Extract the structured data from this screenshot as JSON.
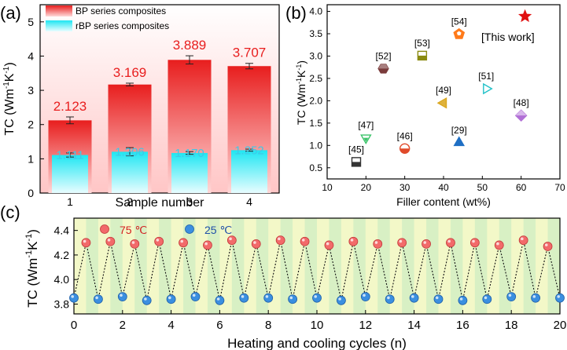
{
  "chart_data": [
    {
      "type": "bar",
      "panel_label": "(a)",
      "xlabel": "Sample number",
      "ylabel": "TC (Wm⁻¹K⁻¹)",
      "ylabel_parts": {
        "main": "TC (Wm",
        "sup1": "-1",
        "mid": "K",
        "sup2": "-1",
        "end": ")"
      },
      "categories": [
        "1",
        "2",
        "3",
        "4"
      ],
      "ylim": [
        0,
        5.5
      ],
      "yticks": [
        0,
        1,
        2,
        3,
        4,
        5
      ],
      "legend_position": "top-left",
      "series": [
        {
          "name": "BP series composites",
          "values": [
            2.123,
            3.169,
            3.889,
            3.707
          ],
          "errors": [
            0.1,
            0.04,
            0.12,
            0.08
          ],
          "labels": [
            "2.123",
            "3.169",
            "3.889",
            "3.707"
          ],
          "color": "#e81e1e",
          "label_color": "#e81e1e"
        },
        {
          "name": "rBP series composites",
          "values": [
            1.111,
            1.206,
            1.17,
            1.252
          ],
          "errors": [
            0.06,
            0.12,
            0.04,
            0.03
          ],
          "labels": [
            "1.111",
            "1.206",
            "1.170",
            "1.252"
          ],
          "color": "#1fe6f2",
          "label_color": "#40c8e6"
        }
      ]
    },
    {
      "type": "scatter",
      "panel_label": "(b)",
      "xlabel": "Filler content (wt%)",
      "ylabel": "TC (Wm⁻¹K⁻¹)",
      "ylabel_parts": {
        "main": "TC (Wm",
        "sup1": "-1",
        "mid": "K",
        "sup2": "-1",
        "end": ")"
      },
      "xlim": [
        10,
        70
      ],
      "ylim": [
        0.25,
        4.15
      ],
      "xticks": [
        10,
        20,
        30,
        40,
        50,
        60,
        70
      ],
      "yticks": [
        0.5,
        1.0,
        1.5,
        2.0,
        2.5,
        3.0,
        3.5,
        4.0
      ],
      "ytick_labels": [
        "0.5",
        "1.0",
        "1.5",
        "2.0",
        "2.5",
        "3.0",
        "3.5",
        "4.0"
      ],
      "points": [
        {
          "label": "[45]",
          "x": 17.5,
          "y": 0.63,
          "shape": "square-half",
          "color": "#333333"
        },
        {
          "label": "[47]",
          "x": 20,
          "y": 1.17,
          "shape": "triangle-down",
          "color": "#3cc46a"
        },
        {
          "label": "[46]",
          "x": 30,
          "y": 0.93,
          "shape": "circle-half",
          "color": "#e04a2a"
        },
        {
          "label": "[52]",
          "x": 24.5,
          "y": 2.72,
          "shape": "hexagon",
          "color": "#7a3b3b"
        },
        {
          "label": "[53]",
          "x": 34.5,
          "y": 3.01,
          "shape": "square-half",
          "color": "#8a8a10"
        },
        {
          "label": "[49]",
          "x": 40,
          "y": 1.95,
          "shape": "triangle-left",
          "color": "#d9a51a"
        },
        {
          "label": "[29]",
          "x": 44,
          "y": 1.06,
          "shape": "triangle-up",
          "color": "#1f6fc4"
        },
        {
          "label": "[54]",
          "x": 44,
          "y": 3.49,
          "shape": "pentagon",
          "color": "#ff7a1a"
        },
        {
          "label": "[51]",
          "x": 51,
          "y": 2.27,
          "shape": "triangle-right",
          "color": "#22c1c8"
        },
        {
          "label": "[48]",
          "x": 60,
          "y": 1.67,
          "shape": "diamond",
          "color": "#b16fd6"
        },
        {
          "label": "[This work]",
          "x": 61,
          "y": 3.89,
          "shape": "star",
          "color": "#e01010"
        }
      ]
    },
    {
      "type": "line",
      "panel_label": "(c)",
      "xlabel": "Heating and cooling cycles (n)",
      "ylabel": "TC (Wm⁻¹K⁻¹)",
      "ylabel_parts": {
        "main": "TC (Wm",
        "sup1": "-1",
        "mid": "K",
        "sup2": "-1",
        "end": ")"
      },
      "xlim": [
        0,
        20
      ],
      "ylim": [
        3.72,
        4.5
      ],
      "xticks": [
        0,
        2,
        4,
        6,
        8,
        10,
        12,
        14,
        16,
        18,
        20
      ],
      "yticks": [
        3.8,
        4.0,
        4.2,
        4.4
      ],
      "ytick_labels": [
        "3.8",
        "4.0",
        "4.2",
        "4.4"
      ],
      "legend_position": "top-left",
      "series": [
        {
          "name": "75 ℃",
          "color": "#f06060",
          "x": [
            0.5,
            1.5,
            2.5,
            3.5,
            4.5,
            5.5,
            6.5,
            7.5,
            8.5,
            9.5,
            10.5,
            11.5,
            12.5,
            13.5,
            14.5,
            15.5,
            16.5,
            17.5,
            18.5,
            19.5
          ],
          "values": [
            4.3,
            4.31,
            4.29,
            4.31,
            4.3,
            4.28,
            4.32,
            4.29,
            4.32,
            4.31,
            4.28,
            4.31,
            4.29,
            4.3,
            4.29,
            4.3,
            4.3,
            4.28,
            4.32,
            4.27
          ]
        },
        {
          "name": "25 ℃",
          "color": "#3388dd",
          "x": [
            0,
            1,
            2,
            3,
            4,
            5,
            6,
            7,
            8,
            9,
            10,
            11,
            12,
            13,
            14,
            15,
            16,
            17,
            18,
            19,
            20
          ],
          "values": [
            3.85,
            3.84,
            3.86,
            3.83,
            3.84,
            3.86,
            3.83,
            3.85,
            3.85,
            3.84,
            3.85,
            3.83,
            3.86,
            3.84,
            3.85,
            3.84,
            3.83,
            3.84,
            3.86,
            3.85,
            3.85
          ]
        }
      ]
    }
  ]
}
